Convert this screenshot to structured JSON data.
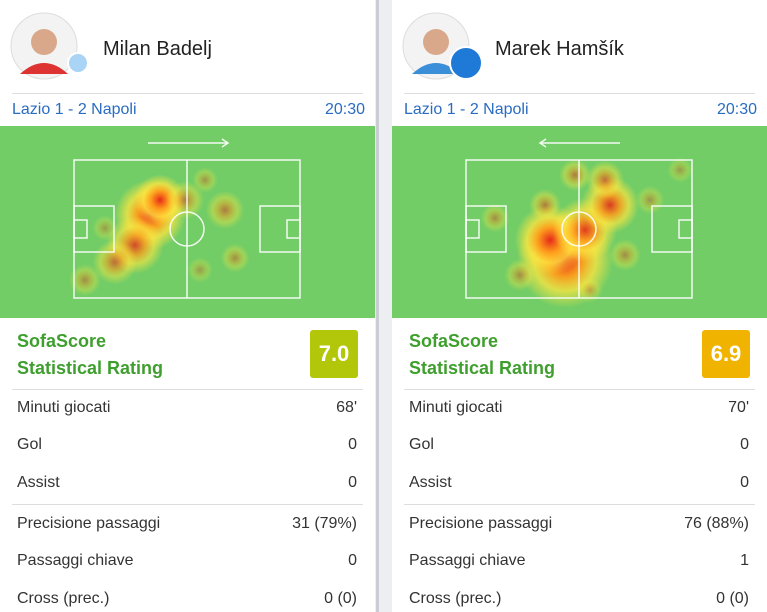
{
  "cards": [
    {
      "player": "Milan Badelj",
      "match": "Lazio 1 - 2 Napoli",
      "time": "20:30",
      "rating_title": [
        "SofaScore",
        "Statistical Rating"
      ],
      "rating": "7.0",
      "stats": [
        {
          "label": "Minuti giocati",
          "value": "68'"
        },
        {
          "label": "Gol",
          "value": "0"
        },
        {
          "label": "Assist",
          "value": "0"
        },
        {
          "label": "Precisione passaggi",
          "value": "31 (79%)"
        },
        {
          "label": "Passaggi chiave",
          "value": "0"
        },
        {
          "label": "Cross (prec.)",
          "value": "0 (0)"
        }
      ]
    },
    {
      "player": "Marek Hamšík",
      "match": "Lazio 1 - 2 Napoli",
      "time": "20:30",
      "rating_title": [
        "SofaScore",
        "Statistical Rating"
      ],
      "rating": "6.9",
      "stats": [
        {
          "label": "Minuti giocati",
          "value": "70'"
        },
        {
          "label": "Gol",
          "value": "0"
        },
        {
          "label": "Assist",
          "value": "0"
        },
        {
          "label": "Precisione passaggi",
          "value": "76 (88%)"
        },
        {
          "label": "Passaggi chiave",
          "value": "1"
        },
        {
          "label": "Cross (prec.)",
          "value": "0 (0)"
        }
      ]
    }
  ]
}
